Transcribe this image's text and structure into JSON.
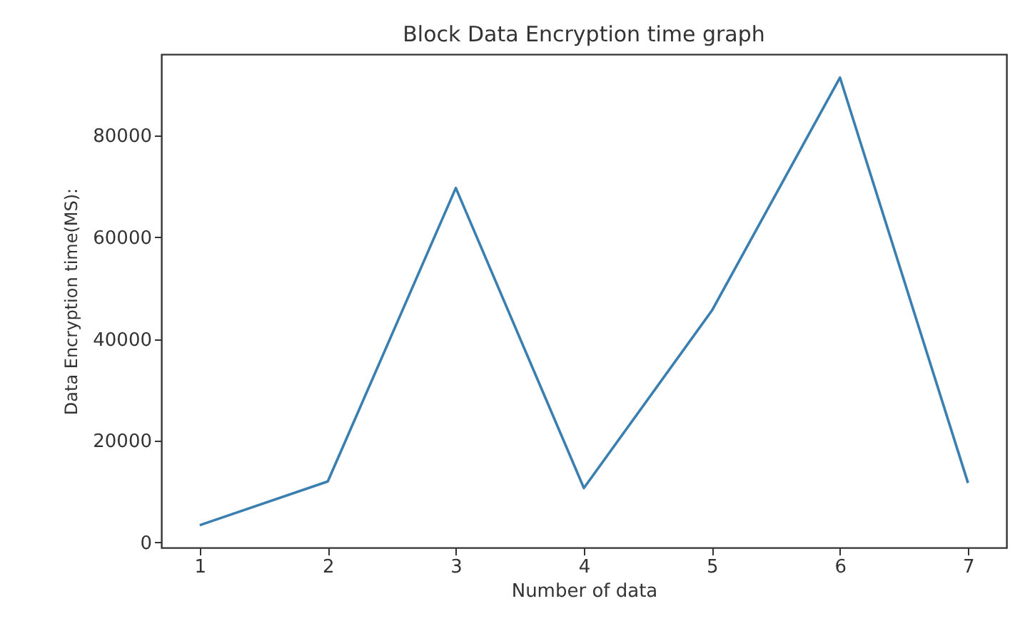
{
  "chart_data": {
    "type": "line",
    "title": "Block Data Encryption time graph",
    "xlabel": "Number of  data",
    "ylabel": "Data Encryption time(MS):",
    "x": [
      1,
      2,
      3,
      4,
      5,
      6,
      7
    ],
    "series": [
      {
        "color": "#3b7fb0",
        "values": [
          3400,
          12000,
          69700,
          10700,
          45600,
          91400,
          11700
        ]
      }
    ],
    "xlim": [
      0.7,
      7.3
    ],
    "xticks": [
      1,
      2,
      3,
      4,
      5,
      6,
      7
    ],
    "ylim": [
      -1000,
      96000
    ],
    "yticks": [
      0,
      20000,
      40000,
      60000,
      80000
    ],
    "grid": false,
    "marker": "none",
    "line_style": "solid"
  }
}
